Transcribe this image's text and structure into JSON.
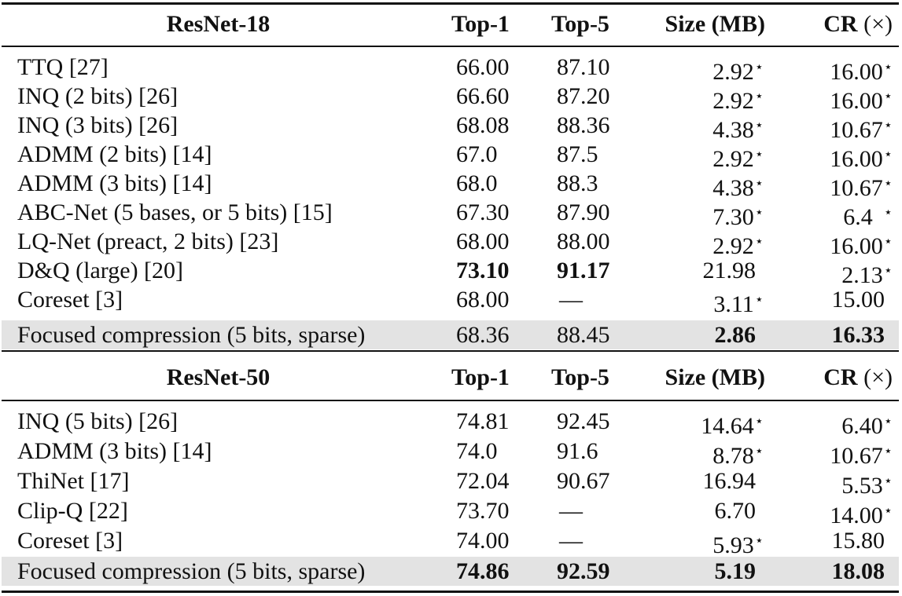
{
  "star_symbol": "⋆",
  "dash_symbol": "—",
  "sections": [
    {
      "header": {
        "name": "ResNet-18",
        "top1": "Top-1",
        "top5": "Top-5",
        "size": "Size (MB)",
        "cr_bold": "CR",
        "cr_rest": " (×)"
      },
      "rows": [
        {
          "name": "TTQ [27]",
          "top1": "66.00",
          "top5": "87.10",
          "size": "2.92",
          "cr": "16.00"
        },
        {
          "name": "INQ (2 bits) [26]",
          "top1": "66.60",
          "top5": "87.20",
          "size": "2.92",
          "cr": "16.00"
        },
        {
          "name": "INQ (3 bits) [26]",
          "top1": "68.08",
          "top5": "88.36",
          "size": "4.38",
          "cr": "10.67"
        },
        {
          "name": "ADMM (2 bits) [14]",
          "top1": "67.0",
          "top5": "87.5",
          "size": "2.92",
          "cr": "16.00"
        },
        {
          "name": "ADMM (3 bits) [14]",
          "top1": "68.0",
          "top5": "88.3",
          "size": "4.38",
          "cr": "10.67"
        },
        {
          "name": "ABC-Net (5 bases, or 5 bits) [15]",
          "top1": "67.30",
          "top5": "87.90",
          "size": "7.30",
          "cr": "6.4"
        },
        {
          "name": "LQ-Net (preact, 2 bits) [23]",
          "top1": "68.00",
          "top5": "88.00",
          "size": "2.92",
          "cr": "16.00"
        },
        {
          "name": "D&Q (large) [20]",
          "top1": "73.10",
          "top5": "91.17",
          "size": "21.98",
          "cr": "2.13"
        },
        {
          "name": "Coreset [3]",
          "top1": "68.00",
          "top5": "—",
          "size": "3.11",
          "cr": "15.00"
        },
        {
          "name": "Focused compression (5 bits, sparse)",
          "top1": "68.36",
          "top5": "88.45",
          "size": "2.86",
          "cr": "16.33"
        }
      ]
    },
    {
      "header": {
        "name": "ResNet-50",
        "top1": "Top-1",
        "top5": "Top-5",
        "size": "Size (MB)",
        "cr_bold": "CR",
        "cr_rest": " (×)"
      },
      "rows": [
        {
          "name": "INQ (5 bits) [26]",
          "top1": "74.81",
          "top5": "92.45",
          "size": "14.64",
          "cr": "6.40"
        },
        {
          "name": "ADMM (3 bits) [14]",
          "top1": "74.0",
          "top5": "91.6",
          "size": "8.78",
          "cr": "10.67"
        },
        {
          "name": "ThiNet [17]",
          "top1": "72.04",
          "top5": "90.67",
          "size": "16.94",
          "cr": "5.53"
        },
        {
          "name": "Clip-Q [22]",
          "top1": "73.70",
          "top5": "—",
          "size": "6.70",
          "cr": "14.00"
        },
        {
          "name": "Coreset [3]",
          "top1": "74.00",
          "top5": "—",
          "size": "5.93",
          "cr": "15.80"
        },
        {
          "name": "Focused compression (5 bits, sparse)",
          "top1": "74.86",
          "top5": "92.59",
          "size": "5.19",
          "cr": "18.08"
        }
      ]
    }
  ]
}
